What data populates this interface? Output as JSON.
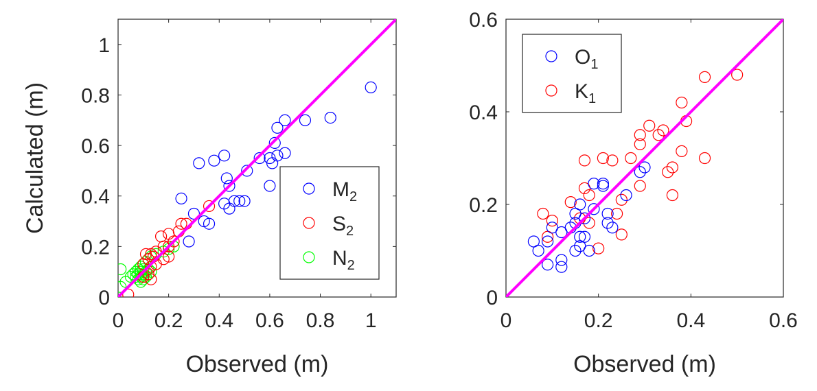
{
  "chart_data": [
    {
      "type": "scatter",
      "xlabel": "Observed (m)",
      "ylabel": "Calculated (m)",
      "xlim": [
        0,
        1.1
      ],
      "ylim": [
        0,
        1.1
      ],
      "xticks": [
        0,
        0.2,
        0.4,
        0.6,
        0.8,
        1
      ],
      "yticks": [
        0,
        0.2,
        0.4,
        0.6,
        0.8,
        1
      ],
      "xtick_labels": [
        "0",
        "0.2",
        "0.4",
        "0.6",
        "0.8",
        "1"
      ],
      "ytick_labels": [
        "0",
        "0.2",
        "0.4",
        "0.6",
        "0.8",
        "1"
      ],
      "reference_line": {
        "from": [
          0,
          0
        ],
        "to": [
          1.1,
          1.1
        ],
        "color": "#ff00ff"
      },
      "legend_position": "bottom-right",
      "series": [
        {
          "name": "M",
          "subscript": "2",
          "color": "#0000ff",
          "points": [
            [
              1.0,
              0.83
            ],
            [
              0.84,
              0.71
            ],
            [
              0.74,
              0.7
            ],
            [
              0.66,
              0.7
            ],
            [
              0.63,
              0.67
            ],
            [
              0.62,
              0.61
            ],
            [
              0.66,
              0.57
            ],
            [
              0.63,
              0.56
            ],
            [
              0.6,
              0.55
            ],
            [
              0.56,
              0.55
            ],
            [
              0.51,
              0.5
            ],
            [
              0.42,
              0.56
            ],
            [
              0.38,
              0.54
            ],
            [
              0.32,
              0.53
            ],
            [
              0.61,
              0.53
            ],
            [
              0.43,
              0.47
            ],
            [
              0.44,
              0.44
            ],
            [
              0.6,
              0.44
            ],
            [
              0.25,
              0.39
            ],
            [
              0.46,
              0.38
            ],
            [
              0.48,
              0.38
            ],
            [
              0.5,
              0.38
            ],
            [
              0.42,
              0.37
            ],
            [
              0.44,
              0.35
            ],
            [
              0.3,
              0.33
            ],
            [
              0.34,
              0.3
            ],
            [
              0.36,
              0.29
            ],
            [
              0.28,
              0.22
            ]
          ]
        },
        {
          "name": "S",
          "subscript": "2",
          "color": "#ff0000",
          "points": [
            [
              0.36,
              0.36
            ],
            [
              0.27,
              0.29
            ],
            [
              0.25,
              0.29
            ],
            [
              0.24,
              0.26
            ],
            [
              0.2,
              0.25
            ],
            [
              0.17,
              0.24
            ],
            [
              0.22,
              0.22
            ],
            [
              0.2,
              0.2
            ],
            [
              0.18,
              0.2
            ],
            [
              0.15,
              0.18
            ],
            [
              0.13,
              0.17
            ],
            [
              0.11,
              0.17
            ],
            [
              0.14,
              0.16
            ],
            [
              0.12,
              0.15
            ],
            [
              0.18,
              0.15
            ],
            [
              0.2,
              0.16
            ],
            [
              0.1,
              0.13
            ],
            [
              0.15,
              0.13
            ],
            [
              0.13,
              0.12
            ],
            [
              0.12,
              0.09
            ],
            [
              0.1,
              0.08
            ],
            [
              0.13,
              0.07
            ],
            [
              0.04,
              0.01
            ]
          ]
        },
        {
          "name": "N",
          "subscript": "2",
          "color": "#00ff00",
          "points": [
            [
              0.22,
              0.2
            ],
            [
              0.2,
              0.19
            ],
            [
              0.18,
              0.18
            ],
            [
              0.15,
              0.17
            ],
            [
              0.13,
              0.16
            ],
            [
              0.12,
              0.15
            ],
            [
              0.11,
              0.14
            ],
            [
              0.1,
              0.13
            ],
            [
              0.09,
              0.12
            ],
            [
              0.08,
              0.11
            ],
            [
              0.1,
              0.11
            ],
            [
              0.12,
              0.11
            ],
            [
              0.07,
              0.1
            ],
            [
              0.09,
              0.1
            ],
            [
              0.11,
              0.1
            ],
            [
              0.13,
              0.1
            ],
            [
              0.06,
              0.09
            ],
            [
              0.08,
              0.09
            ],
            [
              0.1,
              0.09
            ],
            [
              0.05,
              0.08
            ],
            [
              0.07,
              0.08
            ],
            [
              0.09,
              0.08
            ],
            [
              0.11,
              0.08
            ],
            [
              0.08,
              0.07
            ],
            [
              0.1,
              0.07
            ],
            [
              0.09,
              0.06
            ],
            [
              0.01,
              0.11
            ],
            [
              0.01,
              0.04
            ],
            [
              0.03,
              0.06
            ]
          ]
        }
      ]
    },
    {
      "type": "scatter",
      "xlabel": "Observed (m)",
      "ylabel": "",
      "xlim": [
        0,
        0.6
      ],
      "ylim": [
        0,
        0.6
      ],
      "xticks": [
        0,
        0.2,
        0.4,
        0.6
      ],
      "yticks": [
        0,
        0.2,
        0.4,
        0.6
      ],
      "xtick_labels": [
        "0",
        "0.2",
        "0.4",
        "0.6"
      ],
      "ytick_labels": [
        "0",
        "0.2",
        "0.4",
        "0.6"
      ],
      "reference_line": {
        "from": [
          0,
          0
        ],
        "to": [
          0.6,
          0.6
        ],
        "color": "#ff00ff"
      },
      "legend_position": "top-left",
      "series": [
        {
          "name": "O",
          "subscript": "1",
          "color": "#0000ff",
          "points": [
            [
              0.3,
              0.28
            ],
            [
              0.29,
              0.27
            ],
            [
              0.26,
              0.22
            ],
            [
              0.21,
              0.24
            ],
            [
              0.21,
              0.245
            ],
            [
              0.19,
              0.245
            ],
            [
              0.16,
              0.2
            ],
            [
              0.15,
              0.18
            ],
            [
              0.19,
              0.19
            ],
            [
              0.17,
              0.17
            ],
            [
              0.15,
              0.16
            ],
            [
              0.22,
              0.18
            ],
            [
              0.22,
              0.16
            ],
            [
              0.23,
              0.15
            ],
            [
              0.1,
              0.15
            ],
            [
              0.14,
              0.15
            ],
            [
              0.12,
              0.14
            ],
            [
              0.17,
              0.13
            ],
            [
              0.06,
              0.12
            ],
            [
              0.09,
              0.12
            ],
            [
              0.16,
              0.13
            ],
            [
              0.07,
              0.1
            ],
            [
              0.16,
              0.11
            ],
            [
              0.15,
              0.1
            ],
            [
              0.18,
              0.1
            ],
            [
              0.09,
              0.07
            ],
            [
              0.12,
              0.08
            ],
            [
              0.12,
              0.065
            ]
          ]
        },
        {
          "name": "K",
          "subscript": "1",
          "color": "#ff0000",
          "points": [
            [
              0.5,
              0.48
            ],
            [
              0.43,
              0.475
            ],
            [
              0.38,
              0.42
            ],
            [
              0.39,
              0.38
            ],
            [
              0.31,
              0.37
            ],
            [
              0.34,
              0.36
            ],
            [
              0.33,
              0.35
            ],
            [
              0.29,
              0.35
            ],
            [
              0.29,
              0.33
            ],
            [
              0.38,
              0.315
            ],
            [
              0.27,
              0.3
            ],
            [
              0.21,
              0.3
            ],
            [
              0.23,
              0.295
            ],
            [
              0.43,
              0.3
            ],
            [
              0.17,
              0.295
            ],
            [
              0.36,
              0.28
            ],
            [
              0.35,
              0.27
            ],
            [
              0.29,
              0.24
            ],
            [
              0.17,
              0.235
            ],
            [
              0.18,
              0.22
            ],
            [
              0.36,
              0.22
            ],
            [
              0.25,
              0.21
            ],
            [
              0.14,
              0.205
            ],
            [
              0.24,
              0.18
            ],
            [
              0.08,
              0.18
            ],
            [
              0.16,
              0.17
            ],
            [
              0.1,
              0.165
            ],
            [
              0.18,
              0.16
            ],
            [
              0.25,
              0.135
            ],
            [
              0.09,
              0.13
            ],
            [
              0.2,
              0.105
            ]
          ]
        }
      ]
    }
  ]
}
